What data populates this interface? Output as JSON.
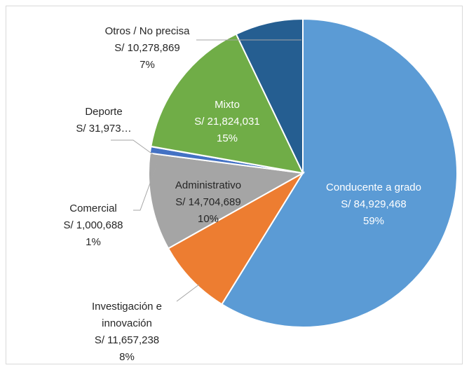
{
  "chart_data": {
    "type": "pie",
    "categories": [
      "Conducente a grado",
      "Investigación e innovación",
      "Administrativo",
      "Comercial",
      "Deporte",
      "Mixto",
      "Otros / No precisa"
    ],
    "values": [
      84929468,
      11657238,
      14704689,
      1000688,
      31973,
      21824031,
      10278869
    ],
    "value_labels": [
      "S/ 84,929,468",
      "S/ 11,657,238",
      "S/ 14,704,689",
      "S/ 1,000,688",
      "S/ 31,973…",
      "S/ 21,824,031",
      "S/ 10,278,869"
    ],
    "percent_labels": [
      "59%",
      "8%",
      "10%",
      "1%",
      null,
      "15%",
      "7%"
    ],
    "colors": [
      "#5b9bd5",
      "#ed7d31",
      "#a5a5a5",
      "#4472c4",
      "#ffc000",
      "#70ad47",
      "#255e91"
    ]
  }
}
